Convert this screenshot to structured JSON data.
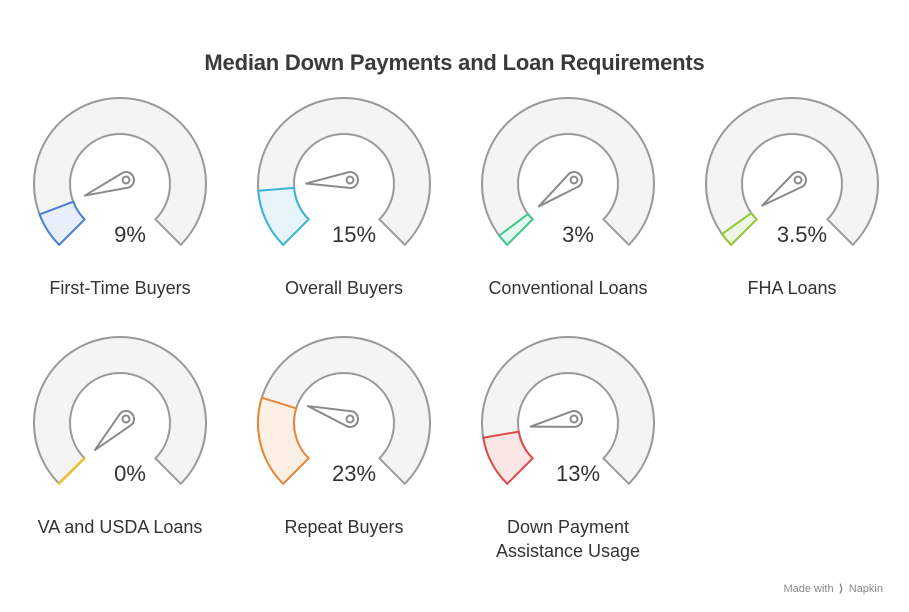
{
  "title": "Median Down Payments and Loan Requirements",
  "footer": {
    "made_with": "Made with",
    "brand": "Napkin"
  },
  "chart_data": {
    "type": "gauge",
    "title": "Median Down Payments and Loan Requirements",
    "scale": [
      0,
      100
    ],
    "items": [
      {
        "label": "First-Time Buyers",
        "value": 9,
        "display": "9%",
        "color": "#4a7fd6",
        "fill": "#e8eefa"
      },
      {
        "label": "Overall Buyers",
        "value": 15,
        "display": "15%",
        "color": "#3ab3d9",
        "fill": "#e6f5fa"
      },
      {
        "label": "Conventional Loans",
        "value": 3,
        "display": "3%",
        "color": "#3cc98a",
        "fill": "#e5f7ee"
      },
      {
        "label": "FHA Loans",
        "value": 3.5,
        "display": "3.5%",
        "color": "#8fc93a",
        "fill": "#eef7e3"
      },
      {
        "label": "VA and USDA Loans",
        "value": 0,
        "display": "0%",
        "color": "#e8c23a",
        "fill": "#fbf4de"
      },
      {
        "label": "Repeat Buyers",
        "value": 23,
        "display": "23%",
        "color": "#e8863a",
        "fill": "#fcefe3"
      },
      {
        "label": "Down Payment Assistance Usage",
        "value": 13,
        "display": "13%",
        "color": "#e04a4a",
        "fill": "#fbe6e6"
      }
    ]
  }
}
